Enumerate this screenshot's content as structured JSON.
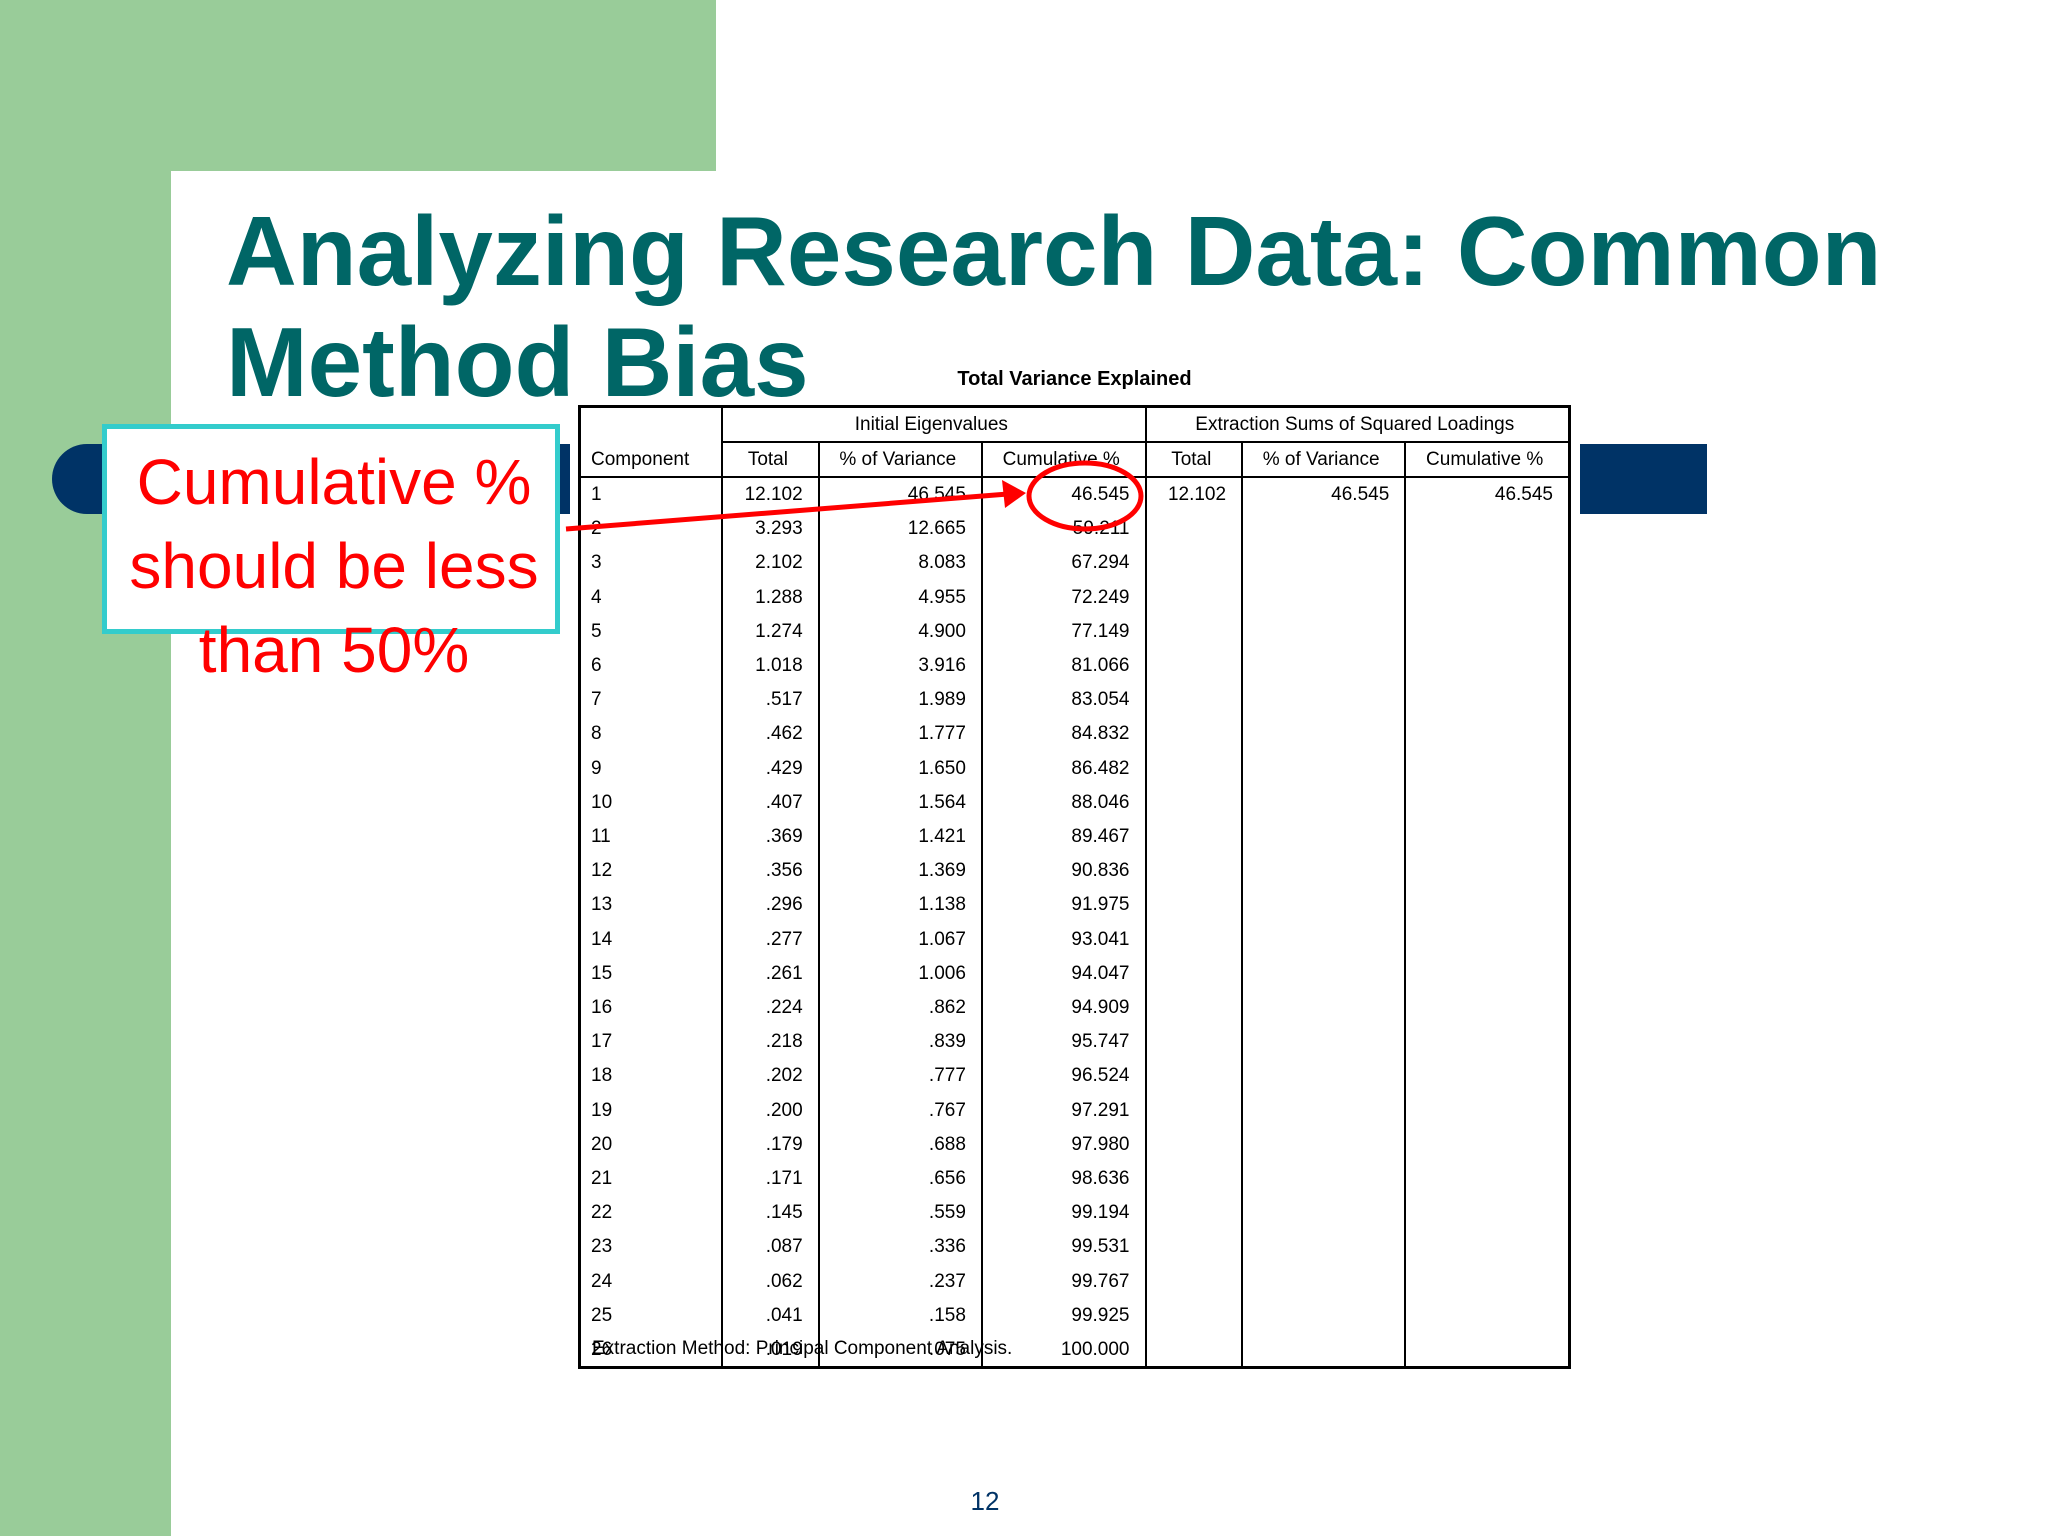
{
  "slide": {
    "title": "Analyzing Research Data: Common Method Bias",
    "page_number": "12",
    "colors": {
      "title": "#006666",
      "sidebar": "#99cc99",
      "band": "#003366",
      "callout_text": "#ff0000",
      "callout_border": "#33cccc"
    }
  },
  "callout": {
    "text": "Cumulative % should be less than 50%"
  },
  "table": {
    "title": "Total Variance Explained",
    "group_headers": [
      "Initial Eigenvalues",
      "Extraction Sums of Squared Loadings"
    ],
    "component_header": "Component",
    "columns": [
      "Total",
      "% of Variance",
      "Cumulative %",
      "Total",
      "% of Variance",
      "Cumulative %"
    ],
    "rows": [
      [
        "1",
        "12.102",
        "46.545",
        "46.545",
        "12.102",
        "46.545",
        "46.545"
      ],
      [
        "2",
        "3.293",
        "12.665",
        "59.211",
        "",
        "",
        ""
      ],
      [
        "3",
        "2.102",
        "8.083",
        "67.294",
        "",
        "",
        ""
      ],
      [
        "4",
        "1.288",
        "4.955",
        "72.249",
        "",
        "",
        ""
      ],
      [
        "5",
        "1.274",
        "4.900",
        "77.149",
        "",
        "",
        ""
      ],
      [
        "6",
        "1.018",
        "3.916",
        "81.066",
        "",
        "",
        ""
      ],
      [
        "7",
        ".517",
        "1.989",
        "83.054",
        "",
        "",
        ""
      ],
      [
        "8",
        ".462",
        "1.777",
        "84.832",
        "",
        "",
        ""
      ],
      [
        "9",
        ".429",
        "1.650",
        "86.482",
        "",
        "",
        ""
      ],
      [
        "10",
        ".407",
        "1.564",
        "88.046",
        "",
        "",
        ""
      ],
      [
        "11",
        ".369",
        "1.421",
        "89.467",
        "",
        "",
        ""
      ],
      [
        "12",
        ".356",
        "1.369",
        "90.836",
        "",
        "",
        ""
      ],
      [
        "13",
        ".296",
        "1.138",
        "91.975",
        "",
        "",
        ""
      ],
      [
        "14",
        ".277",
        "1.067",
        "93.041",
        "",
        "",
        ""
      ],
      [
        "15",
        ".261",
        "1.006",
        "94.047",
        "",
        "",
        ""
      ],
      [
        "16",
        ".224",
        ".862",
        "94.909",
        "",
        "",
        ""
      ],
      [
        "17",
        ".218",
        ".839",
        "95.747",
        "",
        "",
        ""
      ],
      [
        "18",
        ".202",
        ".777",
        "96.524",
        "",
        "",
        ""
      ],
      [
        "19",
        ".200",
        ".767",
        "97.291",
        "",
        "",
        ""
      ],
      [
        "20",
        ".179",
        ".688",
        "97.980",
        "",
        "",
        ""
      ],
      [
        "21",
        ".171",
        ".656",
        "98.636",
        "",
        "",
        ""
      ],
      [
        "22",
        ".145",
        ".559",
        "99.194",
        "",
        "",
        ""
      ],
      [
        "23",
        ".087",
        ".336",
        "99.531",
        "",
        "",
        ""
      ],
      [
        "24",
        ".062",
        ".237",
        "99.767",
        "",
        "",
        ""
      ],
      [
        "25",
        ".041",
        ".158",
        "99.925",
        "",
        "",
        ""
      ],
      [
        "26",
        ".019",
        ".075",
        "100.000",
        "",
        "",
        ""
      ]
    ],
    "footnote": "Extraction Method: Principal Component Analysis."
  }
}
